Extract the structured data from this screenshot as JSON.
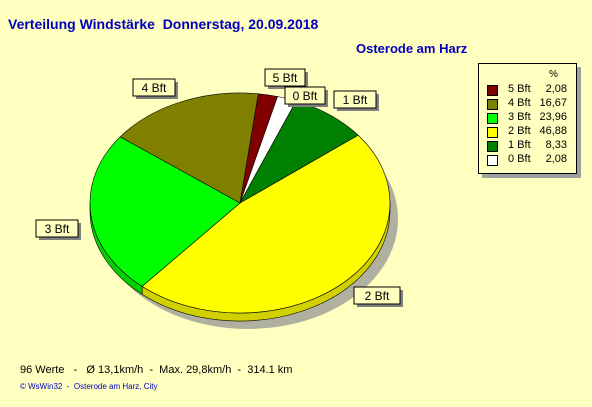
{
  "header": {
    "title": "Verteilung Windstärke  Donnerstag, 20.09.2018",
    "location": "Osterode am Harz"
  },
  "footer": {
    "stats": "96 Werte   -   Ø 13,1km/h  -  Max. 29,8km/h  -  314.1 km",
    "credit": "© WsWin32  -  Osterode am Harz, City"
  },
  "legend": {
    "percent_header": "%",
    "position": "top-right"
  },
  "chart_data": {
    "type": "pie",
    "title": "Verteilung Windstärke  Donnerstag, 20.09.2018",
    "slices": [
      {
        "label": "5 Bft",
        "value": 2.08,
        "value_text": "2,08",
        "color": "#800000"
      },
      {
        "label": "4 Bft",
        "value": 16.67,
        "value_text": "16,67",
        "color": "#808000"
      },
      {
        "label": "3 Bft",
        "value": 23.96,
        "value_text": "23,96",
        "color": "#00ff00"
      },
      {
        "label": "2 Bft",
        "value": 46.88,
        "value_text": "46,88",
        "color": "#ffff00"
      },
      {
        "label": "1 Bft",
        "value": 8.33,
        "value_text": "8,33",
        "color": "#008000"
      },
      {
        "label": "0 Bft",
        "value": 2.08,
        "value_text": "2,08",
        "color": "#ffffff"
      }
    ]
  }
}
